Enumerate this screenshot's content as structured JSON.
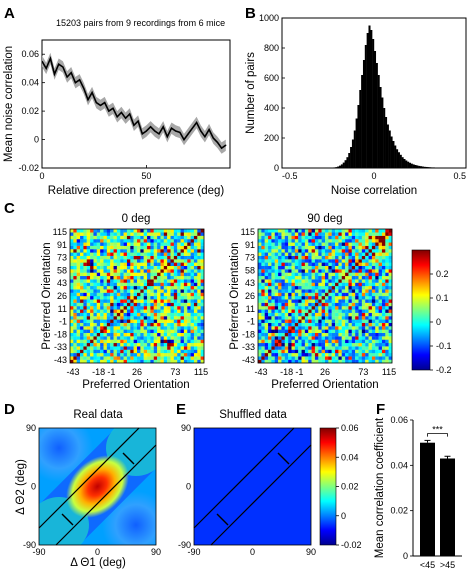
{
  "chart_data": [
    {
      "id": "A",
      "panel_label": "A",
      "type": "line",
      "title": "15203 pairs from 9 recordings from 6 mice",
      "xlabel": "Relative direction preference (deg)",
      "ylabel": "Mean noise correlation",
      "xlim": [
        0,
        90
      ],
      "ylim": [
        -0.02,
        0.07
      ],
      "x_ticks": [
        "0",
        "50"
      ],
      "y_ticks": [
        "-0.02",
        "0",
        "0.02",
        "0.04",
        "0.06"
      ],
      "error_band": true,
      "x": [
        0,
        2,
        4,
        6,
        8,
        10,
        12,
        14,
        16,
        18,
        20,
        22,
        24,
        26,
        28,
        30,
        32,
        34,
        36,
        38,
        40,
        42,
        44,
        46,
        48,
        50,
        52,
        54,
        56,
        58,
        60,
        62,
        64,
        66,
        68,
        70,
        72,
        74,
        76,
        78,
        80,
        82,
        84,
        86,
        88
      ],
      "values": [
        0.055,
        0.05,
        0.057,
        0.046,
        0.053,
        0.051,
        0.044,
        0.047,
        0.04,
        0.042,
        0.036,
        0.028,
        0.033,
        0.026,
        0.024,
        0.026,
        0.02,
        0.022,
        0.016,
        0.019,
        0.015,
        0.018,
        0.01,
        0.013,
        0.004,
        0.006,
        0.009,
        0.006,
        0.004,
        0.009,
        0.002,
        0.008,
        0.006,
        0.005,
        0.0,
        0.004,
        0.008,
        0.012,
        0.006,
        0.002,
        0.007,
        0.001,
        -0.002,
        -0.006,
        -0.004
      ],
      "err": [
        0.004,
        0.004,
        0.004,
        0.004,
        0.004,
        0.004,
        0.004,
        0.004,
        0.004,
        0.004,
        0.004,
        0.004,
        0.004,
        0.004,
        0.004,
        0.004,
        0.004,
        0.004,
        0.004,
        0.004,
        0.004,
        0.004,
        0.004,
        0.004,
        0.004,
        0.004,
        0.004,
        0.004,
        0.004,
        0.004,
        0.004,
        0.004,
        0.004,
        0.004,
        0.004,
        0.004,
        0.004,
        0.004,
        0.004,
        0.004,
        0.004,
        0.004,
        0.004,
        0.004,
        0.004
      ]
    },
    {
      "id": "B",
      "panel_label": "B",
      "type": "bar",
      "subtype": "histogram",
      "xlabel": "Noise correlation",
      "ylabel": "Number of pairs",
      "xlim": [
        -0.5,
        0.5
      ],
      "ylim": [
        0,
        1000
      ],
      "x_ticks": [
        "-0.5",
        "0",
        "0.5"
      ],
      "y_ticks": [
        "0",
        "200",
        "400",
        "600",
        "800",
        "1000"
      ],
      "bin_centers": [
        -0.225,
        -0.215,
        -0.205,
        -0.195,
        -0.185,
        -0.175,
        -0.165,
        -0.155,
        -0.145,
        -0.135,
        -0.125,
        -0.115,
        -0.105,
        -0.095,
        -0.085,
        -0.075,
        -0.065,
        -0.055,
        -0.045,
        -0.035,
        -0.025,
        -0.015,
        -0.005,
        0.005,
        0.015,
        0.025,
        0.035,
        0.045,
        0.055,
        0.065,
        0.075,
        0.085,
        0.095,
        0.105,
        0.115,
        0.125,
        0.135,
        0.145,
        0.155,
        0.165,
        0.175,
        0.185,
        0.195,
        0.205,
        0.215,
        0.225,
        0.235,
        0.245,
        0.255,
        0.265,
        0.275,
        0.285,
        0.295,
        0.305,
        0.315,
        0.325,
        0.335,
        0.345,
        0.355,
        0.365,
        0.375,
        0.385,
        0.395,
        0.405,
        0.415,
        0.425,
        0.435,
        0.445,
        0.455,
        0.465,
        0.475,
        0.485,
        0.495
      ],
      "values": [
        2,
        4,
        6,
        10,
        16,
        24,
        36,
        52,
        72,
        100,
        140,
        190,
        250,
        330,
        420,
        520,
        620,
        720,
        820,
        900,
        950,
        920,
        860,
        780,
        700,
        620,
        540,
        470,
        400,
        340,
        290,
        250,
        210,
        180,
        150,
        125,
        105,
        88,
        72,
        60,
        50,
        42,
        35,
        29,
        24,
        20,
        17,
        14,
        12,
        10,
        8,
        7,
        6,
        5,
        4,
        4,
        3,
        3,
        2,
        2,
        2,
        2,
        1,
        1,
        1,
        1,
        1,
        1,
        1,
        1,
        1,
        1,
        1
      ]
    },
    {
      "id": "C",
      "panel_label": "C",
      "type": "heatmap",
      "panels": [
        {
          "title": "0 deg",
          "xlabel": "Preferred Orientation",
          "ylabel": "Preferred Orientation"
        },
        {
          "title": "90 deg",
          "xlabel": "Preferred Orientation",
          "ylabel": "Preferred Orientation"
        }
      ],
      "tick_labels": [
        "-43",
        "-33",
        "-18",
        "-1",
        "11",
        "26",
        "43",
        "58",
        "73",
        "91",
        "115"
      ],
      "x_tick_labels": [
        "-43",
        "-18",
        "-1",
        "26",
        "73",
        "115"
      ],
      "colorbar": {
        "min": -0.2,
        "max": 0.3,
        "ticks": [
          "0.2",
          "0.1",
          "0",
          "-0.1",
          "-0.2"
        ],
        "colormap": "jet"
      }
    },
    {
      "id": "DE",
      "type": "heatmap",
      "panels": [
        {
          "panel_label": "D",
          "title": "Real data"
        },
        {
          "panel_label": "E",
          "title": "Shuffled data"
        }
      ],
      "xlabel": "Δ Θ1 (deg)",
      "ylabel": "Δ Θ2 (deg)",
      "xlim": [
        -90,
        90
      ],
      "ylim": [
        -90,
        90
      ],
      "x_ticks": [
        "-90",
        "0",
        "90"
      ],
      "y_ticks": [
        "90",
        "0",
        "-90"
      ],
      "colorbar": {
        "min": -0.02,
        "max": 0.06,
        "ticks": [
          "0.06",
          "0.04",
          "0.02",
          "0",
          "-0.02"
        ],
        "colormap": "jet"
      }
    },
    {
      "id": "F",
      "panel_label": "F",
      "type": "bar",
      "categories": [
        "<45",
        ">45"
      ],
      "values": [
        0.05,
        0.043
      ],
      "errors": [
        0.001,
        0.001
      ],
      "ylabel": "Mean correlation coefficient",
      "ylim": [
        0,
        0.06
      ],
      "y_ticks": [
        "0",
        "0.02",
        "0.04",
        "0.06"
      ],
      "significance": "***"
    }
  ]
}
